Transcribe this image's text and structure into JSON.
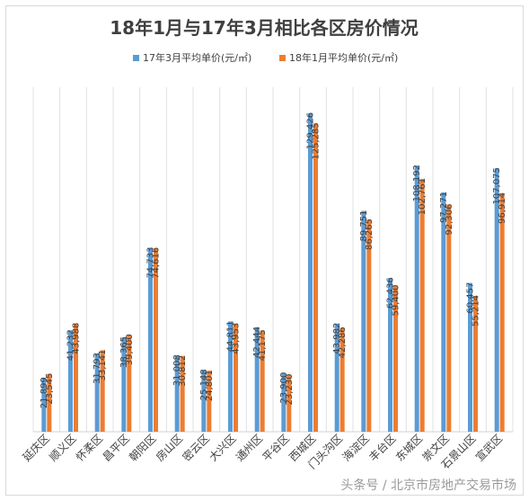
{
  "chart_data": {
    "type": "bar",
    "title": "18年1月与17年3月相比各区房价情况",
    "legend_position": "top",
    "grid": "vertical",
    "ylim": [
      0,
      140000
    ],
    "categories": [
      "延庆区",
      "顺义区",
      "怀柔区",
      "昌平区",
      "朝阳区",
      "房山区",
      "密云区",
      "大兴区",
      "通州区",
      "平谷区",
      "西城区",
      "门头沟区",
      "海淀区",
      "丰台区",
      "东城区",
      "崇文区",
      "石景山区",
      "宣武区"
    ],
    "series": [
      {
        "name": "17年3月平均单价(元/㎡)",
        "color": "#5b9bd5",
        "values": [
          21899,
          41232,
          31793,
          38365,
          74733,
          31008,
          25148,
          44811,
          42444,
          23900,
          129426,
          43982,
          89751,
          62436,
          108192,
          97271,
          60457,
          107075
        ],
        "labels": [
          "21,899",
          "41,232",
          "31,793",
          "38,365",
          "74,733",
          "31,008",
          "25,148",
          "44,811",
          "42,444",
          "23,900",
          "129,426",
          "43,982",
          "89,751",
          "62,436",
          "108,192",
          "97,271",
          "60,457",
          "107,075"
        ]
      },
      {
        "name": "18年1月平均单价(元/㎡)",
        "color": "#ed7d31",
        "values": [
          23545,
          43988,
          33141,
          39400,
          74616,
          30812,
          24801,
          43953,
          41175,
          23230,
          125285,
          42286,
          86265,
          59400,
          102761,
          92306,
          55214,
          96914
        ],
        "labels": [
          "23,545",
          "43,988",
          "33,141",
          "39,400",
          "74,616",
          "30,812",
          "24,801",
          "43,953",
          "41,175",
          "23,230",
          "125,285",
          "42,286",
          "86,265",
          "59,400",
          "102,761",
          "92,306",
          "55,214",
          "96,914"
        ]
      }
    ]
  },
  "watermark": "头条号 / 北京市房地产交易市场"
}
